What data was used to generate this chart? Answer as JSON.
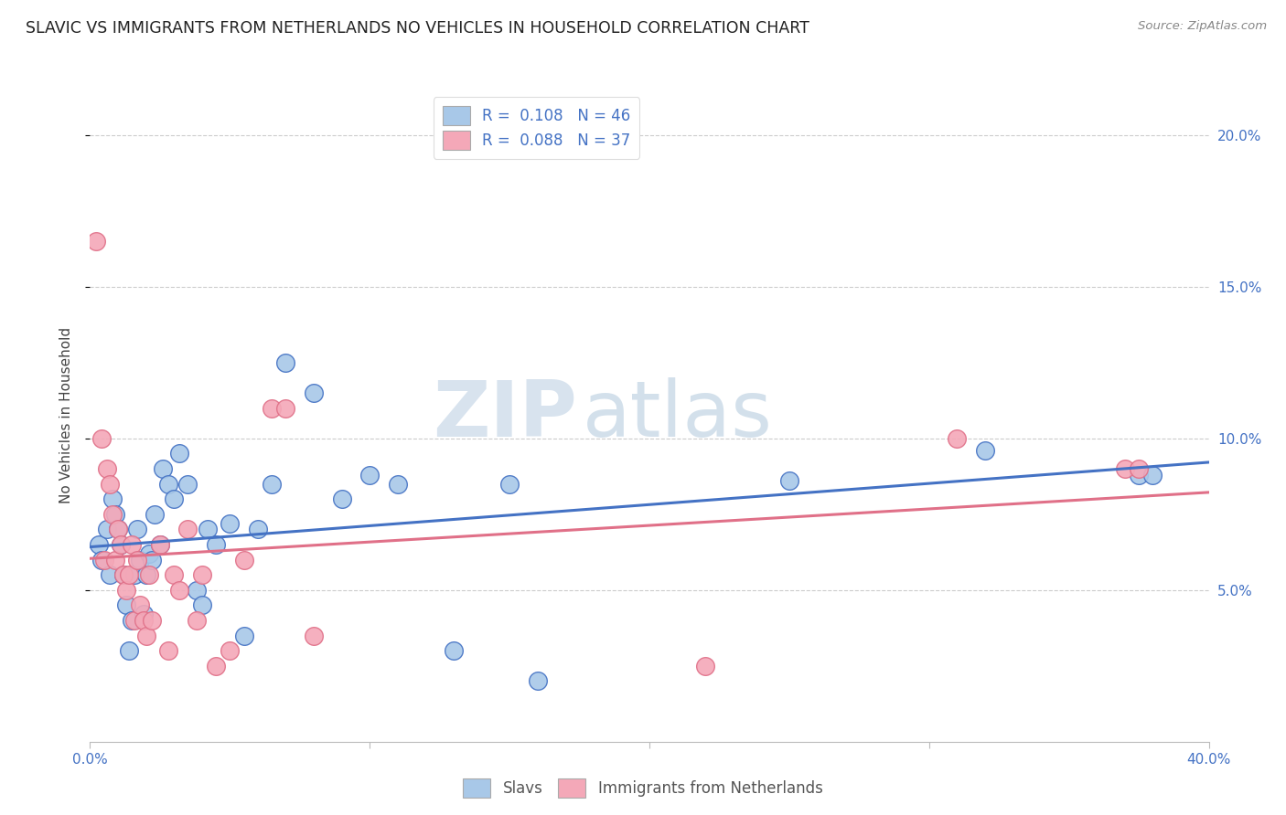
{
  "title": "SLAVIC VS IMMIGRANTS FROM NETHERLANDS NO VEHICLES IN HOUSEHOLD CORRELATION CHART",
  "source": "Source: ZipAtlas.com",
  "ylabel": "No Vehicles in Household",
  "legend_label_1": "Slavs",
  "legend_label_2": "Immigrants from Netherlands",
  "R1": "0.108",
  "N1": "46",
  "R2": "0.088",
  "N2": "37",
  "xlim": [
    0.0,
    0.4
  ],
  "ylim": [
    0.0,
    0.215
  ],
  "yticks": [
    0.05,
    0.1,
    0.15,
    0.2
  ],
  "ytick_labels": [
    "5.0%",
    "10.0%",
    "15.0%",
    "20.0%"
  ],
  "xticks": [
    0.0,
    0.1,
    0.2,
    0.3,
    0.4
  ],
  "xtick_labels": [
    "0.0%",
    "",
    "",
    "",
    "40.0%"
  ],
  "watermark_zip": "ZIP",
  "watermark_atlas": "atlas",
  "color_slavs": "#a8c8e8",
  "color_netherlands": "#f4a8b8",
  "line_color_slavs": "#4472c4",
  "line_color_netherlands": "#e07088",
  "slavs_x": [
    0.003,
    0.004,
    0.006,
    0.007,
    0.008,
    0.009,
    0.01,
    0.011,
    0.012,
    0.013,
    0.014,
    0.015,
    0.016,
    0.017,
    0.018,
    0.019,
    0.02,
    0.021,
    0.022,
    0.023,
    0.025,
    0.026,
    0.028,
    0.03,
    0.032,
    0.035,
    0.038,
    0.04,
    0.042,
    0.045,
    0.05,
    0.055,
    0.06,
    0.065,
    0.07,
    0.08,
    0.09,
    0.1,
    0.11,
    0.13,
    0.15,
    0.16,
    0.25,
    0.32,
    0.375,
    0.38
  ],
  "slavs_y": [
    0.065,
    0.06,
    0.07,
    0.055,
    0.08,
    0.075,
    0.07,
    0.065,
    0.055,
    0.045,
    0.03,
    0.04,
    0.055,
    0.07,
    0.06,
    0.042,
    0.055,
    0.062,
    0.06,
    0.075,
    0.065,
    0.09,
    0.085,
    0.08,
    0.095,
    0.085,
    0.05,
    0.045,
    0.07,
    0.065,
    0.072,
    0.035,
    0.07,
    0.085,
    0.125,
    0.115,
    0.08,
    0.088,
    0.085,
    0.03,
    0.085,
    0.02,
    0.086,
    0.096,
    0.088,
    0.088
  ],
  "netherlands_x": [
    0.002,
    0.004,
    0.005,
    0.006,
    0.007,
    0.008,
    0.009,
    0.01,
    0.011,
    0.012,
    0.013,
    0.014,
    0.015,
    0.016,
    0.017,
    0.018,
    0.019,
    0.02,
    0.021,
    0.022,
    0.025,
    0.028,
    0.03,
    0.032,
    0.035,
    0.038,
    0.04,
    0.045,
    0.05,
    0.055,
    0.065,
    0.07,
    0.08,
    0.22,
    0.31,
    0.37,
    0.375
  ],
  "netherlands_y": [
    0.165,
    0.1,
    0.06,
    0.09,
    0.085,
    0.075,
    0.06,
    0.07,
    0.065,
    0.055,
    0.05,
    0.055,
    0.065,
    0.04,
    0.06,
    0.045,
    0.04,
    0.035,
    0.055,
    0.04,
    0.065,
    0.03,
    0.055,
    0.05,
    0.07,
    0.04,
    0.055,
    0.025,
    0.03,
    0.06,
    0.11,
    0.11,
    0.035,
    0.025,
    0.1,
    0.09,
    0.09
  ],
  "background_color": "#ffffff",
  "grid_color": "#cccccc",
  "tick_color": "#4472c4",
  "title_fontsize": 12.5,
  "axis_fontsize": 11,
  "legend_fontsize": 12
}
